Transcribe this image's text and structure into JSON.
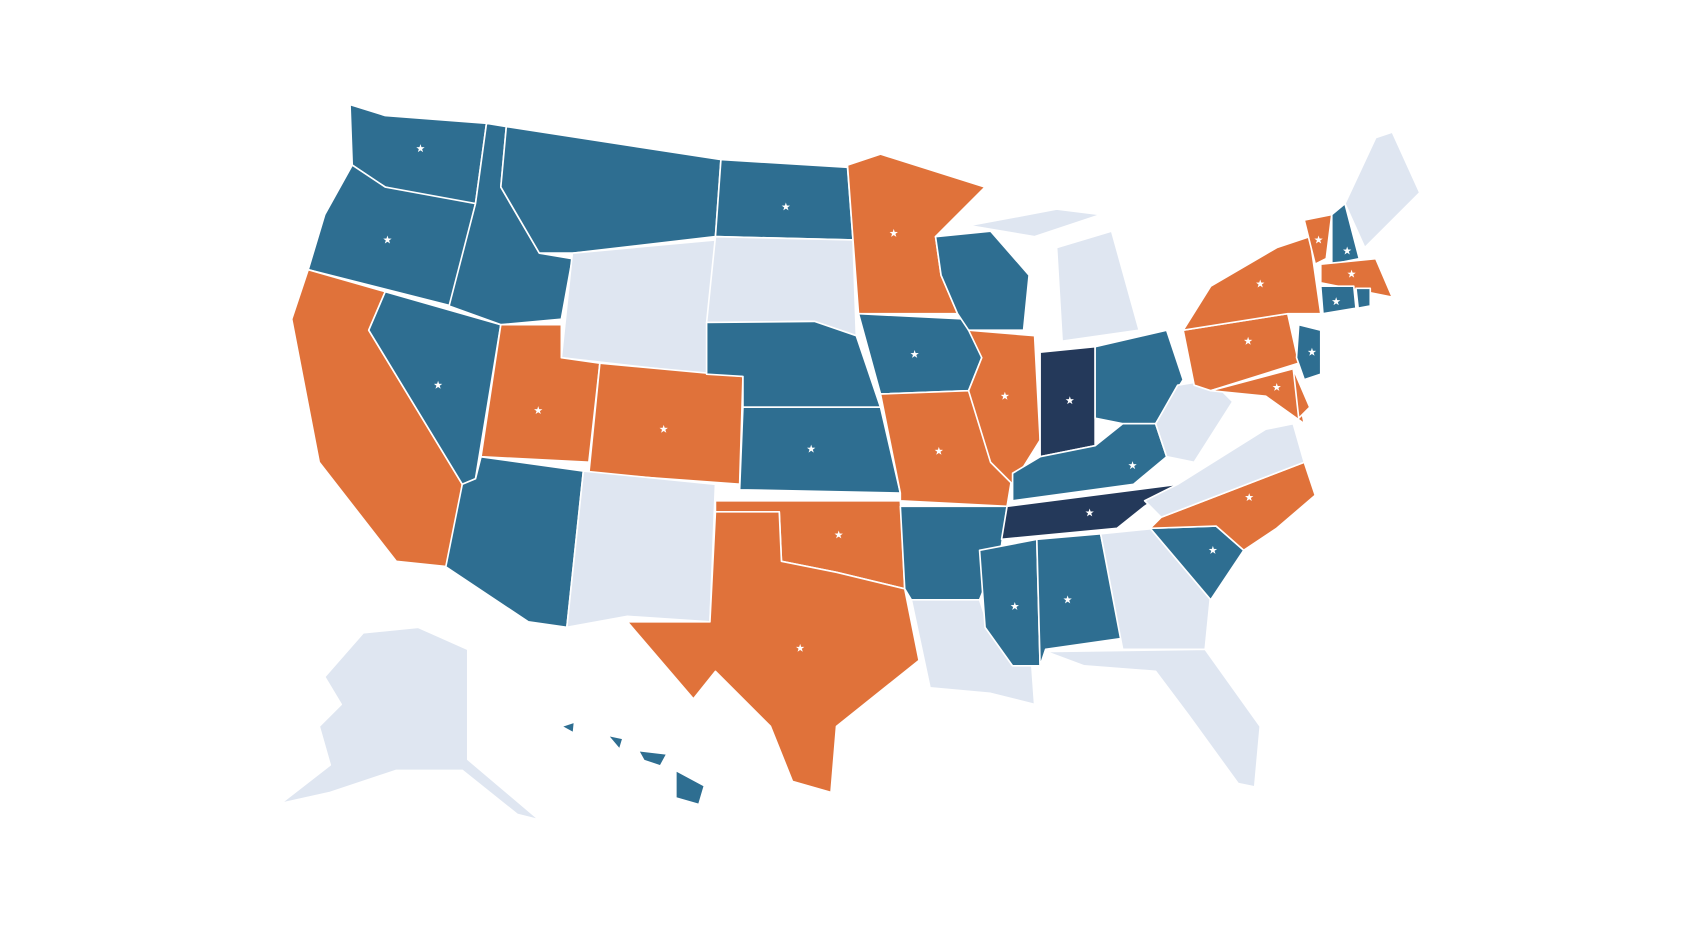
{
  "map": {
    "regions": [
      {
        "color": "#2e6e91",
        "star": true
      },
      {
        "color": "#2e6e91",
        "star": true
      },
      {
        "color": "#e0723a",
        "star": false
      },
      {
        "color": "#2e6e91",
        "star": true
      },
      {
        "color": "#2e6e91",
        "star": false
      },
      {
        "color": "#2e6e91",
        "star": false
      },
      {
        "color": "#dfe6f1",
        "star": false
      },
      {
        "color": "#e0723a",
        "star": true
      },
      {
        "color": "#e0723a",
        "star": true
      },
      {
        "color": "#2e6e91",
        "star": false
      },
      {
        "color": "#dfe6f1",
        "star": false
      },
      {
        "color": "#2e6e91",
        "star": true
      },
      {
        "color": "#dfe6f1",
        "star": false
      },
      {
        "color": "#2e6e91",
        "star": false
      },
      {
        "color": "#2e6e91",
        "star": true
      },
      {
        "color": "#e0723a",
        "star": true
      },
      {
        "color": "#e0723a",
        "star": true
      },
      {
        "color": "#e0723a",
        "star": true
      },
      {
        "color": "#2e6e91",
        "star": true
      },
      {
        "color": "#e0723a",
        "star": true
      },
      {
        "color": "#2e6e91",
        "star": false
      },
      {
        "color": "#dfe6f1",
        "star": false
      },
      {
        "color": "#2e6e91",
        "star": false
      },
      {
        "color": "#e0723a",
        "star": true
      },
      {
        "color": "#dfe6f1",
        "star": false
      },
      {
        "color": "#dfe6f1",
        "star": false
      },
      {
        "color": "#24395a",
        "star": true
      },
      {
        "color": "#2e6e91",
        "star": false
      },
      {
        "color": "#2e6e91",
        "star": true
      },
      {
        "color": "#24395a",
        "star": true
      },
      {
        "color": "#2e6e91",
        "star": true
      },
      {
        "color": "#2e6e91",
        "star": true
      },
      {
        "color": "#dfe6f1",
        "star": false
      },
      {
        "color": "#dfe6f1",
        "star": false
      },
      {
        "color": "#2e6e91",
        "star": true
      },
      {
        "color": "#e0723a",
        "star": true
      },
      {
        "color": "#dfe6f1",
        "star": false
      },
      {
        "color": "#dfe6f1",
        "star": false
      },
      {
        "color": "#e0723a",
        "star": true
      },
      {
        "color": "#e0723a",
        "star": true
      },
      {
        "color": "#e0723a",
        "star": true
      },
      {
        "color": "#e0723a",
        "star": false
      },
      {
        "color": "#2e6e91",
        "star": true
      },
      {
        "color": "#e0723a",
        "star": true
      },
      {
        "color": "#2e6e91",
        "star": true
      },
      {
        "color": "#dfe6f1",
        "star": false
      },
      {
        "color": "#e0723a",
        "star": true
      },
      {
        "color": "#2e6e91",
        "star": true
      },
      {
        "color": "#2e6e91",
        "star": false
      },
      {
        "color": "#dfe6f1",
        "star": false
      },
      {
        "color": "#2e6e91",
        "star": false
      },
      {
        "color": "#2e6e91",
        "star": false
      },
      {
        "color": "#2e6e91",
        "star": false
      },
      {
        "color": "#2e6e91",
        "star": false
      }
    ]
  }
}
